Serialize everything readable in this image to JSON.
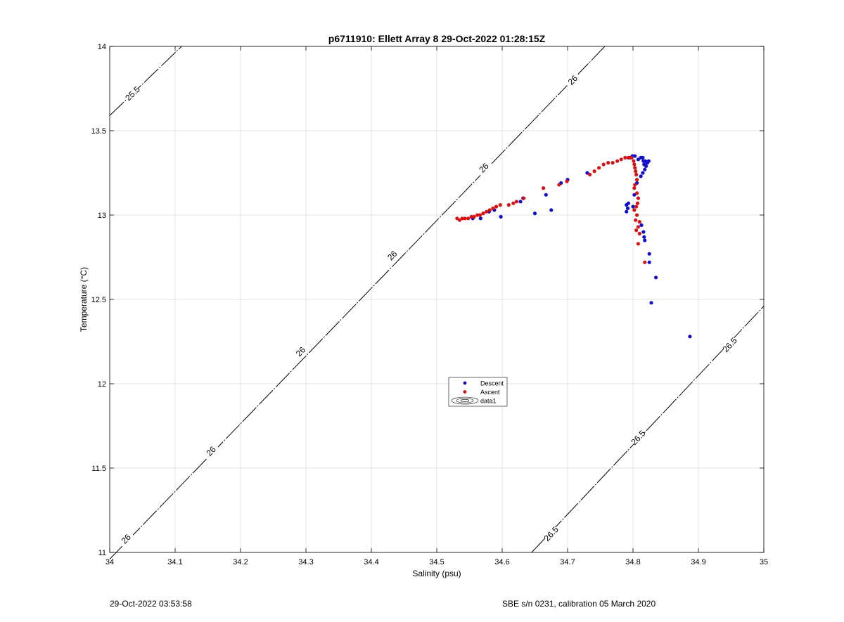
{
  "footer": {
    "left": "29-Oct-2022 03:53:58",
    "right": "SBE s/n 0231, calibration 05 March 2020"
  },
  "colors": {
    "descent": "#1010c8",
    "ascent": "#d41414",
    "grid": "#e3e3e3",
    "axis": "#000000",
    "isopycnal": "#000000"
  },
  "chart_data": {
    "type": "scatter",
    "title": "p6711910: Ellett Array 8 29-Oct-2022 01:28:15Z",
    "xlabel": "Salinity (psu)",
    "ylabel": "Temperature (°C)",
    "xlim": [
      34,
      35
    ],
    "ylim": [
      11,
      14
    ],
    "grid": true,
    "legend_placement": "center",
    "x_ticks": [
      "34",
      "34.1",
      "34.2",
      "34.3",
      "34.4",
      "34.5",
      "34.6",
      "34.7",
      "34.8",
      "34.9",
      "35"
    ],
    "y_ticks": [
      "11",
      "11.5",
      "12",
      "12.5",
      "13",
      "13.5",
      "14"
    ],
    "legend": [
      "Descent",
      "Ascent",
      "data1"
    ],
    "series": [
      {
        "name": "Descent",
        "points": [
          [
            34.887,
            12.28
          ],
          [
            34.828,
            12.48
          ],
          [
            34.835,
            12.63
          ],
          [
            34.825,
            12.72
          ],
          [
            34.825,
            12.77
          ],
          [
            34.818,
            12.85
          ],
          [
            34.817,
            12.87
          ],
          [
            34.816,
            12.9
          ],
          [
            34.813,
            12.94
          ],
          [
            34.79,
            13.02
          ],
          [
            34.792,
            13.04
          ],
          [
            34.79,
            13.06
          ],
          [
            34.793,
            13.07
          ],
          [
            34.8,
            13.05
          ],
          [
            34.802,
            13.12
          ],
          [
            34.806,
            13.19
          ],
          [
            34.812,
            13.23
          ],
          [
            34.815,
            13.25
          ],
          [
            34.818,
            13.27
          ],
          [
            34.817,
            13.3
          ],
          [
            34.82,
            13.29
          ],
          [
            34.822,
            13.31
          ],
          [
            34.824,
            13.32
          ],
          [
            34.819,
            13.32
          ],
          [
            34.816,
            13.32
          ],
          [
            34.815,
            13.34
          ],
          [
            34.812,
            13.34
          ],
          [
            34.808,
            13.33
          ],
          [
            34.803,
            13.35
          ],
          [
            34.799,
            13.35
          ],
          [
            34.795,
            13.34
          ],
          [
            34.675,
            13.03
          ],
          [
            34.667,
            13.12
          ],
          [
            34.65,
            13.01
          ],
          [
            34.632,
            13.1
          ],
          [
            34.628,
            13.08
          ],
          [
            34.598,
            12.99
          ],
          [
            34.588,
            13.03
          ],
          [
            34.58,
            13.02
          ],
          [
            34.567,
            12.98
          ],
          [
            34.555,
            12.98
          ],
          [
            34.73,
            13.25
          ],
          [
            34.7,
            13.21
          ],
          [
            34.69,
            13.19
          ]
        ]
      },
      {
        "name": "Ascent",
        "points": [
          [
            34.531,
            12.98
          ],
          [
            34.535,
            12.97
          ],
          [
            34.539,
            12.98
          ],
          [
            34.543,
            12.98
          ],
          [
            34.548,
            12.98
          ],
          [
            34.553,
            12.99
          ],
          [
            34.557,
            12.99
          ],
          [
            34.562,
            13.0
          ],
          [
            34.566,
            13.0
          ],
          [
            34.571,
            13.01
          ],
          [
            34.576,
            13.02
          ],
          [
            34.581,
            13.03
          ],
          [
            34.586,
            13.04
          ],
          [
            34.591,
            13.05
          ],
          [
            34.597,
            13.06
          ],
          [
            34.61,
            13.06
          ],
          [
            34.617,
            13.07
          ],
          [
            34.622,
            13.08
          ],
          [
            34.633,
            13.1
          ],
          [
            34.663,
            13.16
          ],
          [
            34.687,
            13.18
          ],
          [
            34.699,
            13.2
          ],
          [
            34.734,
            13.24
          ],
          [
            34.741,
            13.26
          ],
          [
            34.748,
            13.28
          ],
          [
            34.755,
            13.3
          ],
          [
            34.762,
            13.31
          ],
          [
            34.769,
            13.31
          ],
          [
            34.776,
            13.32
          ],
          [
            34.782,
            13.33
          ],
          [
            34.788,
            13.34
          ],
          [
            34.793,
            13.34
          ],
          [
            34.798,
            13.34
          ],
          [
            34.801,
            13.32
          ],
          [
            34.802,
            13.3
          ],
          [
            34.803,
            13.28
          ],
          [
            34.804,
            13.26
          ],
          [
            34.805,
            13.24
          ],
          [
            34.806,
            13.21
          ],
          [
            34.803,
            13.18
          ],
          [
            34.802,
            13.16
          ],
          [
            34.806,
            13.13
          ],
          [
            34.808,
            13.1
          ],
          [
            34.807,
            13.07
          ],
          [
            34.805,
            13.05
          ],
          [
            34.802,
            13.03
          ],
          [
            34.806,
            13.0
          ],
          [
            34.804,
            12.97
          ],
          [
            34.81,
            12.96
          ],
          [
            34.808,
            12.93
          ],
          [
            34.805,
            12.91
          ],
          [
            34.81,
            12.89
          ],
          [
            34.808,
            12.83
          ],
          [
            34.818,
            12.72
          ]
        ]
      }
    ],
    "isopycnals": [
      {
        "label": "25.5",
        "points": [
          [
            34.0,
            13.59
          ],
          [
            34.11,
            14.0
          ]
        ],
        "labels_at": [
          [
            34.035,
            13.72
          ]
        ]
      },
      {
        "label": "26",
        "points": [
          [
            34.0,
            10.96
          ],
          [
            34.757,
            14.0
          ]
        ],
        "labels_at": [
          [
            34.025,
            11.08
          ],
          [
            34.155,
            11.6
          ],
          [
            34.292,
            12.19
          ],
          [
            34.432,
            12.76
          ],
          [
            34.572,
            13.28
          ],
          [
            34.708,
            13.8
          ]
        ]
      },
      {
        "label": "26.5",
        "points": [
          [
            34.645,
            11.0
          ],
          [
            35.0,
            12.46
          ]
        ],
        "labels_at": [
          [
            34.675,
            11.11
          ],
          [
            34.808,
            11.68
          ],
          [
            34.948,
            12.23
          ]
        ]
      }
    ]
  }
}
